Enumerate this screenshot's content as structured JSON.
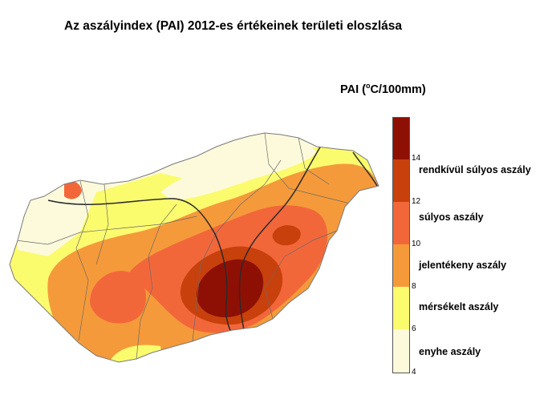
{
  "title": "Az aszályindex (PAI) 2012-es értékeinek területi eloszlása",
  "legend": {
    "title_prefix": "PAI (",
    "title_sup": "o",
    "title_suffix": "C/100mm)",
    "ticks": [
      "14",
      "12",
      "10",
      "8",
      "6",
      "4"
    ],
    "classes": [
      {
        "label": "rendkívül súlyos aszály",
        "color": "#c8400c"
      },
      {
        "label": "súlyos aszály",
        "color": "#f2673a"
      },
      {
        "label": "jelentékeny aszály",
        "color": "#f59a3a"
      },
      {
        "label": "mérsékelt aszály",
        "color": "#fbfb6e"
      },
      {
        "label": "enyhe aszály",
        "color": "#fdfadc"
      }
    ],
    "top_color": "#8e1004"
  }
}
